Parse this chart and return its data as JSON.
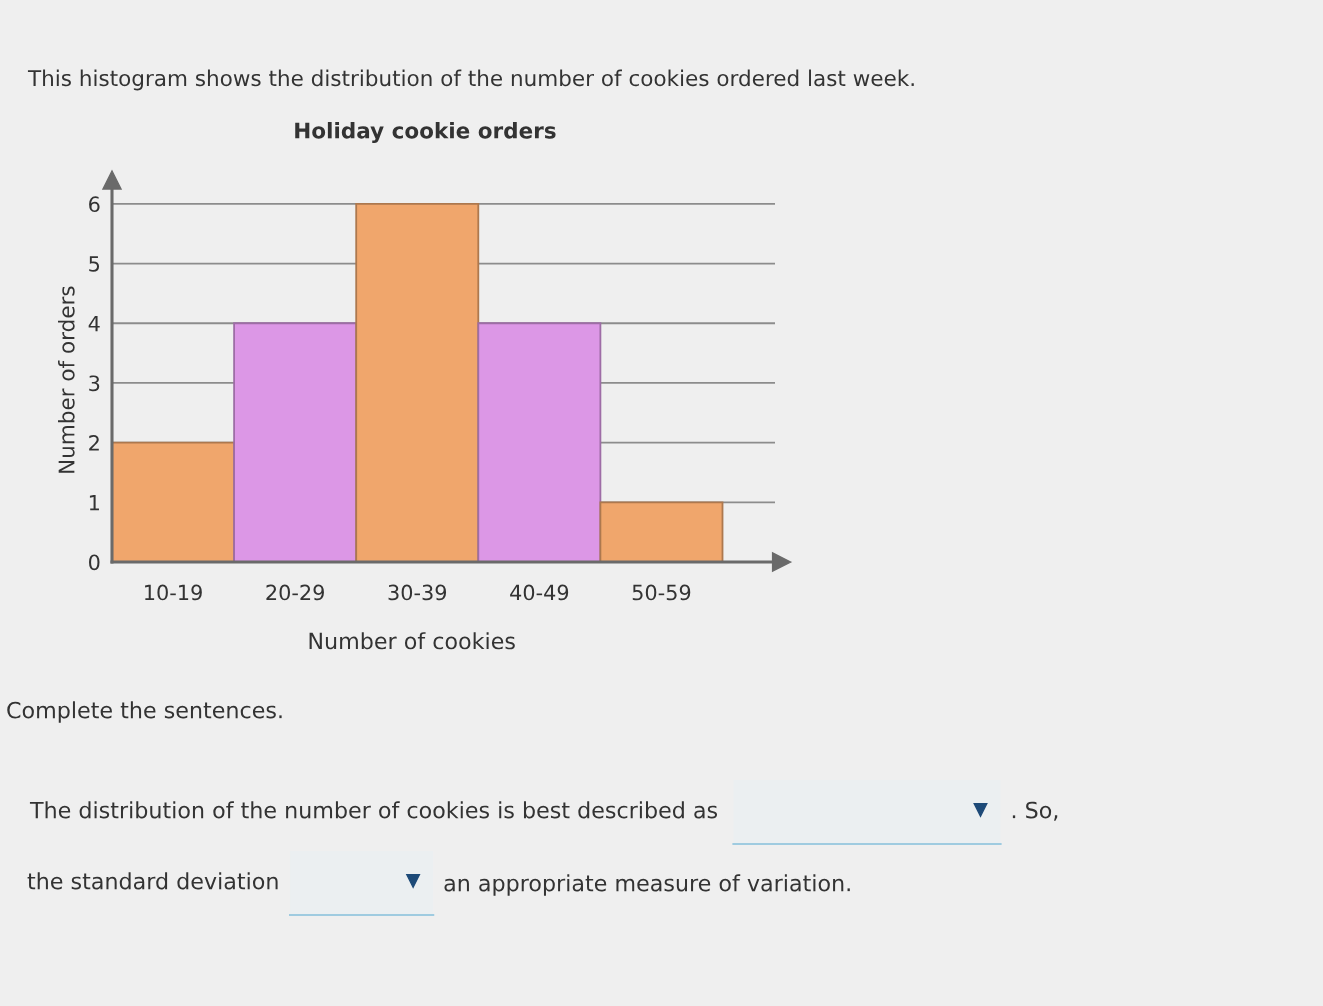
{
  "chart_data": {
    "type": "bar",
    "title": "Holiday cookie orders",
    "xlabel": "Number of cookies",
    "ylabel": "Number of orders",
    "categories": [
      "10-19",
      "20-29",
      "30-39",
      "40-49",
      "50-59"
    ],
    "values": [
      2,
      4,
      6,
      4,
      1
    ],
    "colors": [
      "#f0a66c",
      "#dc97e6",
      "#f0a66c",
      "#dc97e6",
      "#f0a66c"
    ],
    "ylim": [
      0,
      6.4
    ],
    "yticks": [
      0,
      1,
      2,
      3,
      4,
      5,
      6
    ],
    "grid": "y",
    "annotations": [
      "This histogram shows the distribution of the number of cookies ordered last week.",
      "Complete the sentences.",
      "The distribution of the number of cookies is best described as",
      ". So,",
      "the standard deviation",
      "an appropriate measure of variation."
    ]
  }
}
